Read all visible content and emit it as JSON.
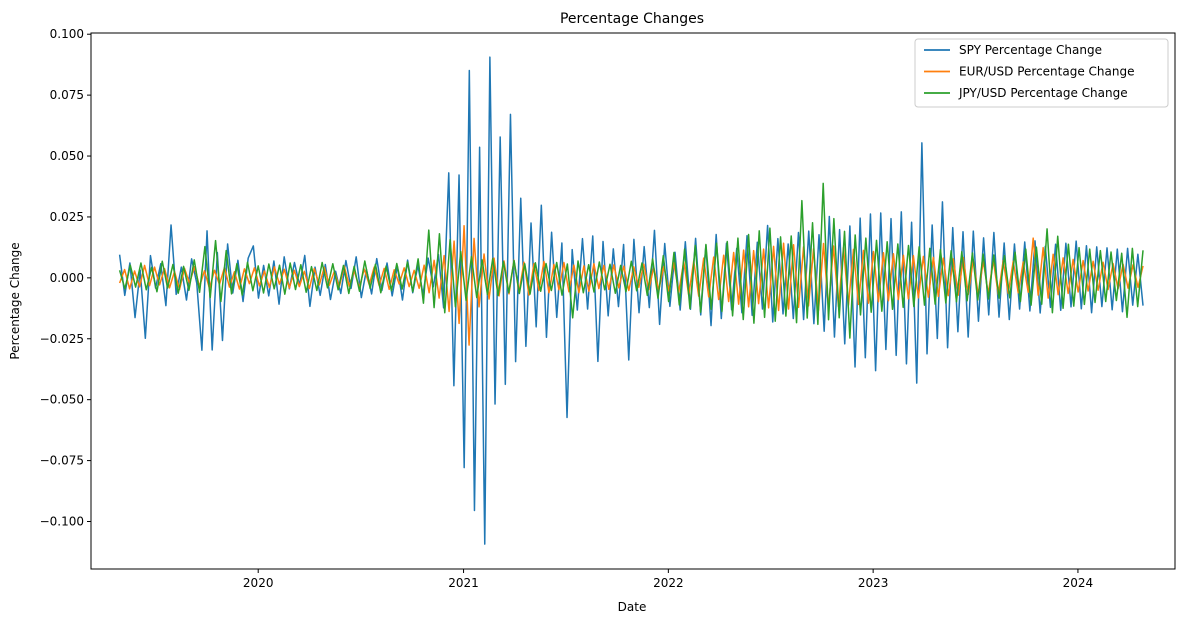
{
  "chart_data": {
    "type": "line",
    "title": "Percentage Changes",
    "xlabel": "Date",
    "ylabel": "Percentage Change",
    "xlim": [
      "2019-03-09",
      "2024-06-22"
    ],
    "ylim": [
      -0.1195,
      0.1005
    ],
    "x_ticks": [
      "2020",
      "2021",
      "2022",
      "2023",
      "2024"
    ],
    "y_ticks": [
      "0.100",
      "0.075",
      "0.050",
      "0.025",
      "0.000",
      "−0.025",
      "−0.050",
      "−0.075",
      "−0.100"
    ],
    "legend_position": "top-right",
    "grid": false,
    "x_range": [
      "2019-04-29",
      "2024-04-26"
    ],
    "series": [
      {
        "name": "SPY Percentage Change",
        "color": "#1f77b4",
        "values": [
          0.0095,
          -0.0072,
          0.0061,
          -0.0163,
          0.0032,
          -0.0248,
          0.0091,
          -0.0042,
          0.0058,
          -0.0114,
          0.0217,
          -0.0068,
          0.0044,
          -0.0091,
          0.0078,
          -0.0022,
          -0.0297,
          0.0193,
          -0.0296,
          0.0104,
          -0.0257,
          0.0139,
          -0.0062,
          0.0072,
          -0.0097,
          0.0081,
          0.0131,
          -0.0083,
          0.0051,
          -0.0074,
          0.0069,
          -0.0108,
          0.0086,
          -0.0045,
          0.0063,
          -0.0031,
          0.0092,
          -0.0117,
          0.0044,
          -0.0072,
          0.0055,
          -0.0089,
          0.0027,
          -0.0064,
          0.0071,
          -0.0043,
          0.0086,
          -0.0081,
          0.0034,
          -0.0066,
          0.0079,
          -0.0052,
          0.0061,
          -0.0074,
          0.0048,
          -0.0091,
          0.0073,
          -0.0061,
          0.0052,
          -0.0069,
          0.0081,
          -0.0037,
          0.0096,
          -0.0123,
          0.0431,
          -0.0443,
          0.0422,
          -0.0779,
          0.0851,
          -0.0955,
          0.0536,
          -0.1093,
          0.0906,
          -0.0518,
          0.0578,
          -0.0437,
          0.0671,
          -0.0344,
          0.0327,
          -0.0281,
          0.0225,
          -0.0201,
          0.0298,
          -0.0244,
          0.0187,
          -0.0162,
          0.0143,
          -0.0573,
          0.0116,
          -0.0132,
          0.0161,
          -0.0128,
          0.0172,
          -0.0343,
          0.0149,
          -0.0156,
          0.0119,
          -0.0118,
          0.0137,
          -0.0337,
          0.0158,
          -0.0143,
          0.0128,
          -0.0122,
          0.0195,
          -0.0191,
          0.0141,
          -0.0117,
          0.0105,
          -0.0132,
          0.0148,
          -0.0129,
          0.0162,
          -0.0152,
          0.0133,
          -0.0196,
          0.0178,
          -0.0167,
          0.0142,
          -0.0131,
          0.0121,
          -0.0143,
          0.0173,
          -0.0154,
          0.0146,
          -0.0128,
          0.0215,
          -0.0181,
          0.0161,
          -0.0148,
          0.0139,
          -0.0167,
          0.0186,
          -0.0171,
          0.0192,
          -0.0188,
          0.0177,
          -0.0219,
          0.0252,
          -0.0243,
          0.0198,
          -0.0271,
          0.0213,
          -0.0366,
          0.0245,
          -0.0328,
          0.0262,
          -0.0381,
          0.0266,
          -0.0294,
          0.0243,
          -0.0318,
          0.0271,
          -0.0353,
          0.0228,
          -0.0432,
          0.0554,
          -0.0312,
          0.0217,
          -0.0249,
          0.0312,
          -0.0287,
          0.0206,
          -0.0221,
          0.0189,
          -0.0243,
          0.0192,
          -0.0178,
          0.0164,
          -0.0152,
          0.0186,
          -0.0161,
          0.0143,
          -0.0171,
          0.0139,
          -0.0128,
          0.0147,
          -0.0136,
          0.0152,
          -0.0144,
          0.0129,
          -0.0121,
          0.0138,
          -0.0133,
          0.0142,
          -0.0119,
          0.0151,
          -0.0127,
          0.0132,
          -0.0143,
          0.0127,
          -0.0118,
          0.0123,
          -0.0131,
          0.0118,
          -0.0139,
          0.0121,
          -0.0112,
          0.0097,
          -0.0114
        ]
      },
      {
        "name": "EUR/USD Percentage Change",
        "color": "#ff7f0e",
        "values": [
          -0.0021,
          0.0034,
          -0.0045,
          0.0028,
          -0.0037,
          0.0051,
          -0.0032,
          0.0044,
          -0.0029,
          0.0038,
          -0.0041,
          0.0026,
          -0.0048,
          0.0039,
          -0.0022,
          0.0046,
          -0.0035,
          0.0029,
          -0.0043,
          0.0031,
          -0.0027,
          0.0042,
          -0.0038,
          0.0025,
          -0.0046,
          0.0037,
          -0.0024,
          0.0041,
          -0.0033,
          0.0028,
          -0.0039,
          0.0045,
          -0.0026,
          0.0035,
          -0.0042,
          0.0031,
          -0.0036,
          0.0027,
          -0.0044,
          0.0038,
          -0.0029,
          0.0043,
          -0.0031,
          0.0026,
          -0.0037,
          0.0048,
          -0.0034,
          0.0029,
          -0.0041,
          0.0036,
          -0.0028,
          0.0044,
          -0.0032,
          0.0039,
          -0.0047,
          0.0033,
          -0.0025,
          0.0041,
          -0.0036,
          0.0031,
          -0.0043,
          0.0052,
          -0.0061,
          0.0072,
          -0.0083,
          0.0091,
          -0.0138,
          0.0151,
          -0.0187,
          0.0214,
          -0.0276,
          0.0162,
          -0.0119,
          0.0098,
          -0.0087,
          0.0081,
          -0.0074,
          0.0069,
          -0.0066,
          0.0072,
          -0.0059,
          0.0064,
          -0.0071,
          0.0058,
          -0.0052,
          0.0067,
          -0.0061,
          0.0055,
          -0.0049,
          0.0063,
          -0.0057,
          0.0052,
          -0.0061,
          0.0049,
          -0.0055,
          0.0058,
          -0.0044,
          0.0051,
          -0.0047,
          0.0053,
          -0.0041,
          0.0048,
          -0.0052,
          0.0045,
          -0.0039,
          0.0056,
          -0.0048,
          0.0043,
          -0.0051,
          0.0047,
          -0.0054,
          0.0062,
          -0.0058,
          0.0066,
          -0.0071,
          0.0069,
          -0.0075,
          0.0081,
          -0.0078,
          0.0085,
          -0.0089,
          0.0093,
          -0.0097,
          0.0104,
          -0.0108,
          0.0114,
          -0.0119,
          0.0112,
          -0.0106,
          0.0118,
          -0.0123,
          0.0129,
          -0.0134,
          0.0142,
          -0.0128,
          0.0136,
          -0.0121,
          0.0127,
          -0.0115,
          0.0119,
          -0.0133,
          0.0141,
          -0.0126,
          0.0131,
          -0.0118,
          0.0124,
          -0.0112,
          0.0117,
          -0.0109,
          0.0113,
          -0.0104,
          0.0108,
          -0.0098,
          0.0103,
          -0.0094,
          0.0099,
          -0.0089,
          0.0093,
          -0.0086,
          0.0091,
          -0.0082,
          0.0088,
          -0.0079,
          0.0084,
          -0.0076,
          0.0081,
          -0.0073,
          0.0078,
          -0.0071,
          0.0083,
          -0.0068,
          0.0075,
          -0.0072,
          0.0069,
          -0.0064,
          0.0073,
          -0.0067,
          0.0071,
          -0.0063,
          0.0068,
          -0.0061,
          0.0065,
          -0.0059,
          0.0163,
          -0.0071,
          0.0124,
          -0.0083,
          0.0097,
          -0.0069,
          0.0082,
          -0.0064,
          0.0076,
          -0.0058,
          0.0071,
          -0.0054,
          0.0068,
          -0.0051,
          0.0064,
          -0.0048,
          0.0059,
          -0.0045,
          0.0056,
          -0.0042,
          0.0053,
          -0.0039,
          0.0049
        ]
      },
      {
        "name": "JPY/USD Percentage Change",
        "color": "#2ca02c",
        "values": [
          0.0031,
          -0.0045,
          0.0052,
          -0.0038,
          0.0061,
          -0.0049,
          0.0043,
          -0.0057,
          0.0068,
          -0.0042,
          0.0055,
          -0.0063,
          0.0047,
          -0.0051,
          0.0074,
          -0.0059,
          0.0128,
          -0.0081,
          0.0153,
          -0.0097,
          0.0112,
          -0.0066,
          0.0058,
          -0.0071,
          0.0064,
          -0.0053,
          0.0049,
          -0.0062,
          0.0057,
          -0.0045,
          0.0052,
          -0.0067,
          0.0061,
          -0.0048,
          0.0054,
          -0.0059,
          0.0046,
          -0.0052,
          0.0063,
          -0.0041,
          0.0058,
          -0.0049,
          0.0051,
          -0.0064,
          0.0047,
          -0.0055,
          0.0069,
          -0.0043,
          0.0056,
          -0.0061,
          0.0048,
          -0.0053,
          0.0059,
          -0.0046,
          0.0065,
          -0.0057,
          0.0078,
          -0.0104,
          0.0196,
          -0.0122,
          0.0181,
          -0.0143,
          0.0157,
          -0.0119,
          0.0108,
          -0.0093,
          0.0087,
          -0.0081,
          0.0074,
          -0.0068,
          0.0079,
          -0.0072,
          0.0066,
          -0.0061,
          0.0071,
          -0.0064,
          0.0058,
          -0.0067,
          0.0062,
          -0.0055,
          0.0059,
          -0.0052,
          0.0063,
          -0.0071,
          0.0057,
          -0.0164,
          0.0069,
          -0.0061,
          0.0054,
          -0.0058,
          0.0065,
          -0.0049,
          0.0056,
          -0.0063,
          0.0051,
          -0.0057,
          0.0068,
          -0.0053,
          0.0061,
          -0.0072,
          0.0078,
          -0.0084,
          0.0091,
          -0.0097,
          0.0104,
          -0.0111,
          0.0118,
          -0.0126,
          0.0133,
          -0.0141,
          0.0137,
          -0.0129,
          0.0142,
          -0.0138,
          0.0149,
          -0.0156,
          0.0163,
          -0.0171,
          0.0178,
          -0.0186,
          0.0193,
          -0.0162,
          0.0204,
          -0.0178,
          0.0168,
          -0.0157,
          0.0172,
          -0.0184,
          0.0317,
          -0.0165,
          0.0226,
          -0.0191,
          0.0388,
          -0.0172,
          0.0243,
          -0.0164,
          0.0191,
          -0.0247,
          0.0176,
          -0.0152,
          0.0163,
          -0.0141,
          0.0154,
          -0.0137,
          0.0148,
          -0.0129,
          0.0139,
          -0.0121,
          0.0133,
          -0.0118,
          0.0127,
          -0.0112,
          0.0121,
          -0.0108,
          0.0116,
          -0.0103,
          0.0111,
          -0.0098,
          0.0107,
          -0.0094,
          0.0102,
          -0.0091,
          0.0098,
          -0.0087,
          0.0094,
          -0.0083,
          0.0091,
          -0.0082,
          0.0105,
          -0.0097,
          0.0118,
          -0.0112,
          0.0126,
          -0.0108,
          0.0201,
          -0.0143,
          0.0171,
          -0.0125,
          0.0138,
          -0.0116,
          0.0124,
          -0.0109,
          0.0118,
          -0.0101,
          0.0112,
          -0.0097,
          0.0106,
          -0.0093,
          0.0101,
          -0.0162,
          0.0121,
          -0.0118,
          0.0113
        ]
      }
    ]
  }
}
